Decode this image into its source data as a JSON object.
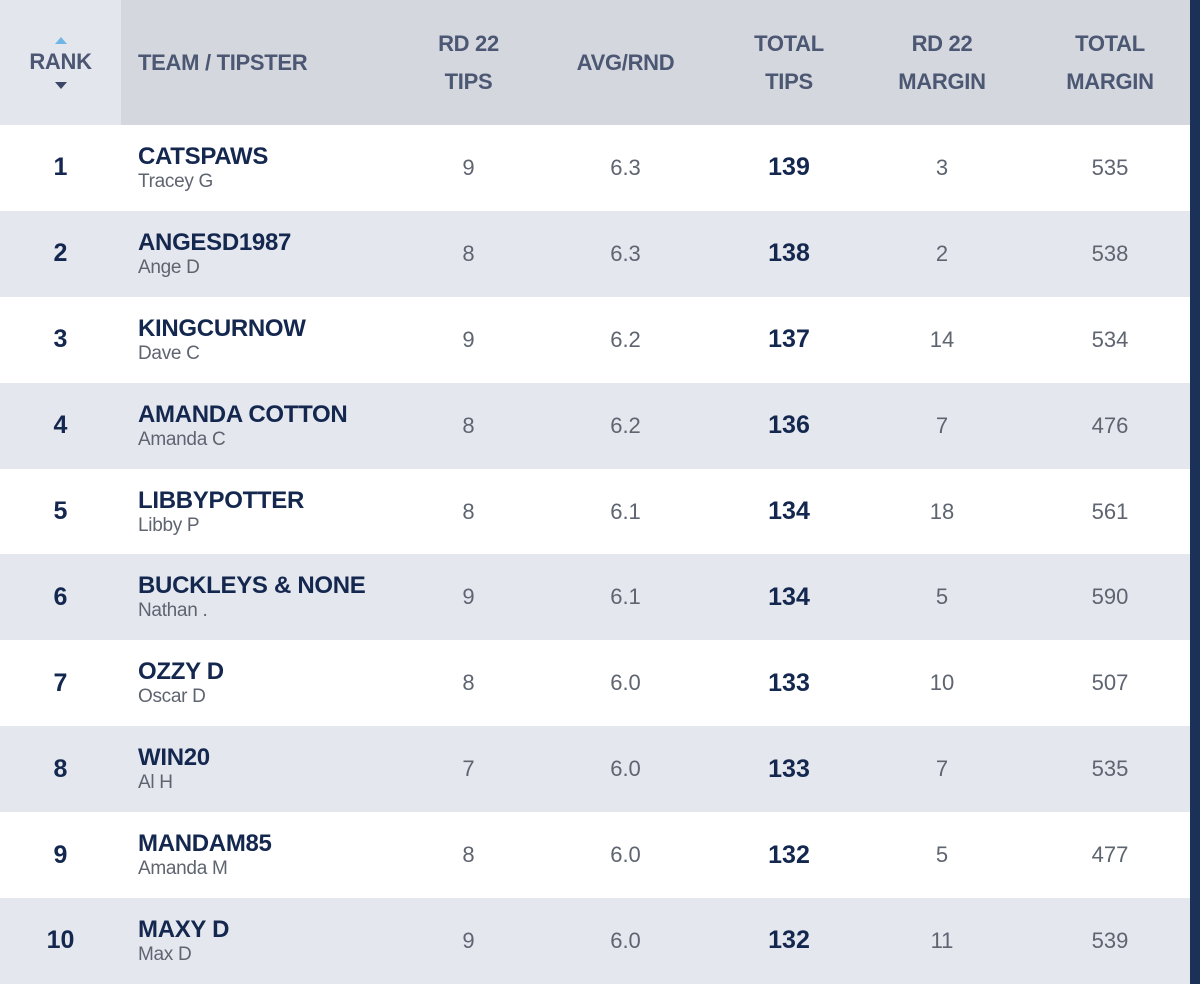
{
  "header": {
    "rank": "RANK",
    "team": "TEAM / TIPSTER",
    "rd_tips": "RD 22\nTIPS",
    "avg": "AVG/RND",
    "total_tips": "TOTAL\nTIPS",
    "rd_margin": "RD 22\nMARGIN",
    "total_margin": "TOTAL\nMARGIN"
  },
  "rows": [
    {
      "rank": "1",
      "team": "CATSPAWS",
      "tipster": "Tracey G",
      "rd_tips": "9",
      "avg": "6.3",
      "total_tips": "139",
      "rd_margin": "3",
      "total_margin": "535"
    },
    {
      "rank": "2",
      "team": "ANGESD1987",
      "tipster": "Ange D",
      "rd_tips": "8",
      "avg": "6.3",
      "total_tips": "138",
      "rd_margin": "2",
      "total_margin": "538"
    },
    {
      "rank": "3",
      "team": "KINGCURNOW",
      "tipster": "Dave C",
      "rd_tips": "9",
      "avg": "6.2",
      "total_tips": "137",
      "rd_margin": "14",
      "total_margin": "534"
    },
    {
      "rank": "4",
      "team": "AMANDA COTTON",
      "tipster": "Amanda C",
      "rd_tips": "8",
      "avg": "6.2",
      "total_tips": "136",
      "rd_margin": "7",
      "total_margin": "476"
    },
    {
      "rank": "5",
      "team": "LIBBYPOTTER",
      "tipster": "Libby P",
      "rd_tips": "8",
      "avg": "6.1",
      "total_tips": "134",
      "rd_margin": "18",
      "total_margin": "561"
    },
    {
      "rank": "6",
      "team": "BUCKLEYS & NONE",
      "tipster": "Nathan .",
      "rd_tips": "9",
      "avg": "6.1",
      "total_tips": "134",
      "rd_margin": "5",
      "total_margin": "590"
    },
    {
      "rank": "7",
      "team": "OZZY D",
      "tipster": "Oscar D",
      "rd_tips": "8",
      "avg": "6.0",
      "total_tips": "133",
      "rd_margin": "10",
      "total_margin": "507"
    },
    {
      "rank": "8",
      "team": "WIN20",
      "tipster": "Al H",
      "rd_tips": "7",
      "avg": "6.0",
      "total_tips": "133",
      "rd_margin": "7",
      "total_margin": "535"
    },
    {
      "rank": "9",
      "team": "MANDAM85",
      "tipster": "Amanda M",
      "rd_tips": "8",
      "avg": "6.0",
      "total_tips": "132",
      "rd_margin": "5",
      "total_margin": "477"
    },
    {
      "rank": "10",
      "team": "MAXY D",
      "tipster": "Max D",
      "rd_tips": "9",
      "avg": "6.0",
      "total_tips": "132",
      "rd_margin": "11",
      "total_margin": "539"
    }
  ],
  "colors": {
    "header_bg": "#d4d7de",
    "header_text": "#4c5873",
    "navy": "#14274e",
    "row_alt": "#e4e7ee",
    "sort_active": "#6fb6e6"
  },
  "icons": {
    "sort_asc": "sort-up-icon",
    "sort_desc": "sort-down-icon"
  }
}
